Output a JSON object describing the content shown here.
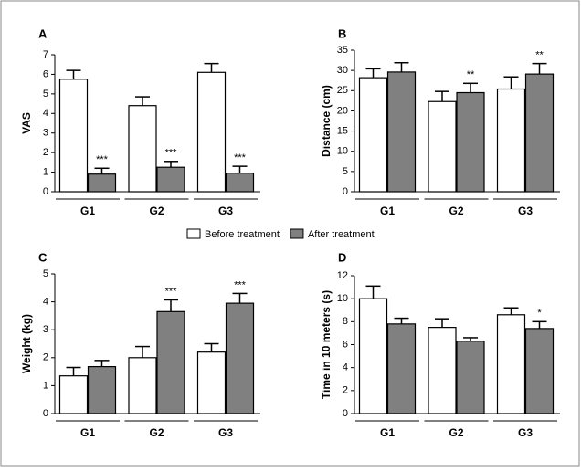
{
  "legend": [
    {
      "name": "Before treatment",
      "color": "#ffffff"
    },
    {
      "name": "After treatment",
      "color": "#808080"
    }
  ],
  "chart_data": [
    {
      "type": "bar",
      "label": "A",
      "y_label": "VAS",
      "categories": [
        "G1",
        "G2",
        "G3"
      ],
      "ylim": [
        0,
        7
      ],
      "yticks": [
        0,
        1,
        2,
        3,
        4,
        5,
        6,
        7
      ],
      "series": [
        {
          "values": [
            5.75,
            4.4,
            6.1
          ],
          "errors": [
            0.45,
            0.45,
            0.45
          ],
          "annotations": [
            null,
            null,
            null
          ]
        },
        {
          "values": [
            0.9,
            1.25,
            0.95
          ],
          "errors": [
            0.3,
            0.3,
            0.35
          ],
          "annotations": [
            "***",
            "***",
            "***"
          ]
        }
      ]
    },
    {
      "type": "bar",
      "label": "B",
      "y_label": "Distance (cm)",
      "categories": [
        "G1",
        "G2",
        "G3"
      ],
      "ylim": [
        0,
        35
      ],
      "yticks": [
        0,
        5,
        10,
        15,
        20,
        25,
        30,
        35
      ],
      "series": [
        {
          "values": [
            28.2,
            22.3,
            25.4
          ],
          "errors": [
            2.2,
            2.5,
            3.0
          ],
          "annotations": [
            null,
            null,
            null
          ]
        },
        {
          "values": [
            29.6,
            24.5,
            29.1
          ],
          "errors": [
            2.3,
            2.3,
            2.6
          ],
          "annotations": [
            null,
            "**",
            "**"
          ]
        }
      ]
    },
    {
      "type": "bar",
      "label": "C",
      "y_label": "Weight (kg)",
      "categories": [
        "G1",
        "G2",
        "G3"
      ],
      "ylim": [
        0,
        5
      ],
      "yticks": [
        0,
        1,
        2,
        3,
        4,
        5
      ],
      "series": [
        {
          "values": [
            1.35,
            2.0,
            2.2
          ],
          "errors": [
            0.3,
            0.4,
            0.3
          ],
          "annotations": [
            null,
            null,
            null
          ]
        },
        {
          "values": [
            1.68,
            3.65,
            3.95
          ],
          "errors": [
            0.22,
            0.42,
            0.35
          ],
          "annotations": [
            null,
            "***",
            "***"
          ]
        }
      ]
    },
    {
      "type": "bar",
      "label": "D",
      "y_label": "Time in 10 meters (s)",
      "categories": [
        "G1",
        "G2",
        "G3"
      ],
      "ylim": [
        0,
        12
      ],
      "yticks": [
        0,
        2,
        4,
        6,
        8,
        10,
        12
      ],
      "series": [
        {
          "values": [
            10.0,
            7.5,
            8.6
          ],
          "errors": [
            1.1,
            0.75,
            0.6
          ],
          "annotations": [
            null,
            null,
            null
          ]
        },
        {
          "values": [
            7.8,
            6.3,
            7.4
          ],
          "errors": [
            0.5,
            0.3,
            0.6
          ],
          "annotations": [
            null,
            null,
            "*"
          ]
        }
      ]
    }
  ]
}
